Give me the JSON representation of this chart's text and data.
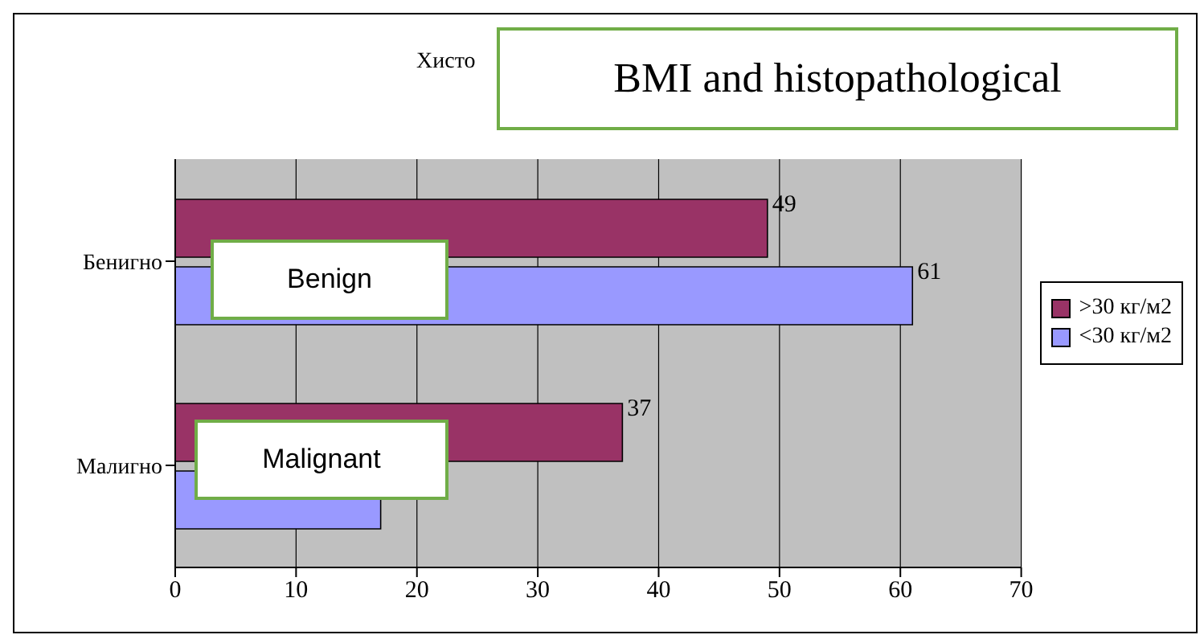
{
  "chart_data": {
    "type": "bar",
    "orientation": "horizontal",
    "title": "BMI and histopathological",
    "annotations": [
      "Хисто",
      "Benign",
      "Malignant"
    ],
    "categories": [
      "Бенигно",
      "Малигно"
    ],
    "series": [
      {
        "name": ">30 кг/м2",
        "color": "#993366",
        "values": [
          49,
          37
        ],
        "value_labels": [
          "49",
          "37"
        ]
      },
      {
        "name": "<30 кг/м2",
        "color": "#9999ff",
        "values": [
          61,
          17
        ],
        "value_labels": [
          "61",
          null
        ]
      }
    ],
    "xlim": [
      0,
      70
    ],
    "xticks": [
      0,
      10,
      20,
      30,
      40,
      50,
      60,
      70
    ],
    "grid": "x",
    "legend": "right"
  }
}
